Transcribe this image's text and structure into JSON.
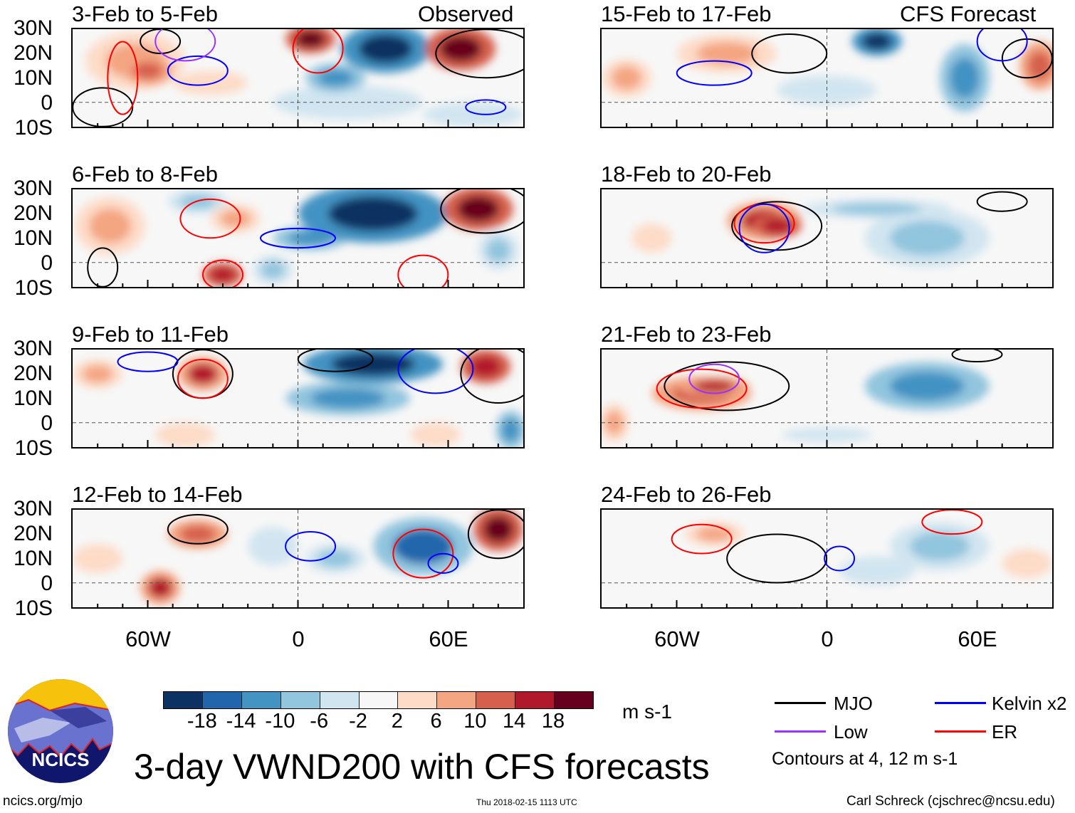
{
  "figure_title": "3-day VWND200 with CFS forecasts",
  "observed_label": "Observed",
  "forecast_label": "CFS Forecast",
  "panels": {
    "left": [
      "3-Feb to 5-Feb",
      "6-Feb to 8-Feb",
      "9-Feb to 11-Feb",
      "12-Feb to 14-Feb"
    ],
    "right": [
      "15-Feb to 17-Feb",
      "18-Feb to 20-Feb",
      "21-Feb to 23-Feb",
      "24-Feb to 26-Feb"
    ]
  },
  "lat_labels": [
    "30N",
    "20N",
    "10N",
    "0",
    "10S"
  ],
  "lon_labels": [
    "60W",
    "0",
    "60E"
  ],
  "colorbar": {
    "colors": [
      "#0b3262",
      "#2166ac",
      "#4393c3",
      "#92c5de",
      "#d1e5f0",
      "#f7f7f7",
      "#fddbc7",
      "#f4a582",
      "#d6604d",
      "#b2182b",
      "#67001f"
    ],
    "labels": [
      "-18",
      "-14",
      "-10",
      "-6",
      "-2",
      "2",
      "6",
      "10",
      "14",
      "18"
    ],
    "units": "m s-1"
  },
  "legend": {
    "items": [
      {
        "label": "MJO",
        "color": "#000000"
      },
      {
        "label": "Kelvin x2",
        "color": "#0000ff"
      },
      {
        "label": "Low",
        "color": "#9b30ff"
      },
      {
        "label": "ER",
        "color": "#ff0000"
      }
    ],
    "contours_note": "Contours at 4, 12 m s-1"
  },
  "logo_text": "NCICS",
  "footer": {
    "url": "ncics.org/mjo",
    "timestamp": "Thu 2018-02-15 1113 UTC",
    "credit": "Carl Schreck (cjschrec@ncsu.edu)"
  }
}
